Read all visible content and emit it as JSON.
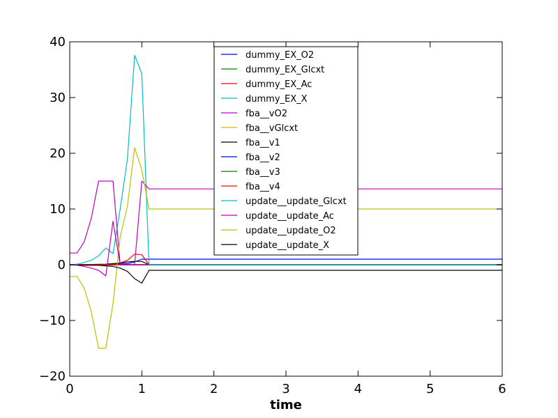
{
  "chart_data": {
    "type": "line",
    "title": "",
    "xlabel": "time",
    "ylabel": "",
    "xlim": [
      0,
      6
    ],
    "ylim": [
      -20,
      40
    ],
    "xticks": [
      "0",
      "1",
      "2",
      "3",
      "4",
      "5",
      "6"
    ],
    "yticks": [
      "−20",
      "−10",
      "0",
      "10",
      "20",
      "30",
      "40"
    ],
    "grid": false,
    "legend_position": "top-center",
    "series": [
      {
        "name": "dummy_EX_O2",
        "color": "#0000ff",
        "x": [
          0,
          0.5,
          0.8,
          0.9,
          1.0,
          1.1,
          6
        ],
        "y": [
          0,
          0,
          0.2,
          0.5,
          1.0,
          1.0,
          1.0
        ]
      },
      {
        "name": "dummy_EX_Glcxt",
        "color": "#008000",
        "x": [
          0,
          6
        ],
        "y": [
          0,
          0
        ]
      },
      {
        "name": "dummy_EX_Ac",
        "color": "#ff0000",
        "x": [
          0,
          0.6,
          0.7,
          0.8,
          0.9,
          1.0,
          1.1,
          6
        ],
        "y": [
          0,
          0,
          0.3,
          0.8,
          1.9,
          1.8,
          0,
          0
        ]
      },
      {
        "name": "dummy_EX_X",
        "color": "#00bfbf",
        "x": [
          0,
          6
        ],
        "y": [
          0,
          0
        ]
      },
      {
        "name": "fba__vO2",
        "color": "#bf00bf",
        "x": [
          0,
          6
        ],
        "y": [
          0,
          0
        ]
      },
      {
        "name": "fba__vGlcxt",
        "color": "#bfbf00",
        "x": [
          0,
          6
        ],
        "y": [
          0,
          0
        ]
      },
      {
        "name": "fba__v1",
        "color": "#000000",
        "x": [
          0,
          0.5,
          0.6,
          0.7,
          0.8,
          0.9,
          1.0,
          1.1,
          6
        ],
        "y": [
          0,
          0.1,
          0.2,
          0.3,
          0.5,
          0.6,
          0.6,
          0,
          0
        ]
      },
      {
        "name": "fba__v2",
        "color": "#0000ff",
        "x": [
          0,
          6
        ],
        "y": [
          0,
          0
        ]
      },
      {
        "name": "fba__v3",
        "color": "#008000",
        "x": [
          0,
          6
        ],
        "y": [
          0,
          0
        ]
      },
      {
        "name": "fba__v4",
        "color": "#ff0000",
        "x": [
          0,
          6
        ],
        "y": [
          0,
          0
        ]
      },
      {
        "name": "update__update_Glcxt",
        "color": "#00bfbf",
        "x": [
          0,
          0.1,
          0.2,
          0.3,
          0.4,
          0.5,
          0.6,
          0.7,
          0.8,
          0.9,
          1.0,
          1.1,
          6
        ],
        "y": [
          0,
          0.1,
          0.4,
          0.8,
          1.6,
          3.0,
          2.0,
          10.0,
          19.0,
          37.6,
          34.3,
          0,
          0
        ]
      },
      {
        "name": "update__update_Ac",
        "color": "#bf00bf",
        "x": [
          0,
          0.1,
          0.2,
          0.3,
          0.4,
          0.5,
          0.6,
          0.7,
          0.8,
          0.9,
          1.0,
          1.1,
          6
        ],
        "y": [
          2.1,
          2.1,
          4.1,
          8.4,
          15.0,
          15.0,
          15.0,
          0,
          0,
          0,
          15.0,
          13.6,
          13.6
        ]
      },
      {
        "name": "update__update_O2",
        "color": "#bfbf00",
        "x": [
          0,
          0.1,
          0.2,
          0.3,
          0.4,
          0.5,
          0.6,
          0.7,
          0.8,
          0.9,
          1.0,
          1.1,
          6
        ],
        "y": [
          -2.1,
          -2.1,
          -4.2,
          -8.5,
          -15.0,
          -15.0,
          -7.0,
          5.0,
          10.5,
          21.0,
          17.0,
          10.0,
          10.0
        ]
      },
      {
        "name": "update__update_X",
        "color": "#000000",
        "x": [
          0,
          0.1,
          0.2,
          0.3,
          0.4,
          0.5,
          0.6,
          0.7,
          0.8,
          0.9,
          1.0,
          1.1,
          6
        ],
        "y": [
          0,
          -0.05,
          -0.1,
          -0.1,
          -0.1,
          -0.2,
          -0.3,
          -0.6,
          -1.2,
          -2.5,
          -3.3,
          -1.0,
          -1.0
        ]
      },
      {
        "name": "",
        "color": "#bf00bf",
        "x": [
          0,
          0.1,
          0.2,
          0.3,
          0.4,
          0.5,
          0.6,
          0.7,
          0.8,
          0.9,
          1.0,
          1.1
        ],
        "y": [
          0,
          -0.1,
          -0.3,
          -0.6,
          -1.0,
          -2.0,
          7.8,
          0,
          0,
          0,
          0,
          0
        ]
      }
    ]
  }
}
